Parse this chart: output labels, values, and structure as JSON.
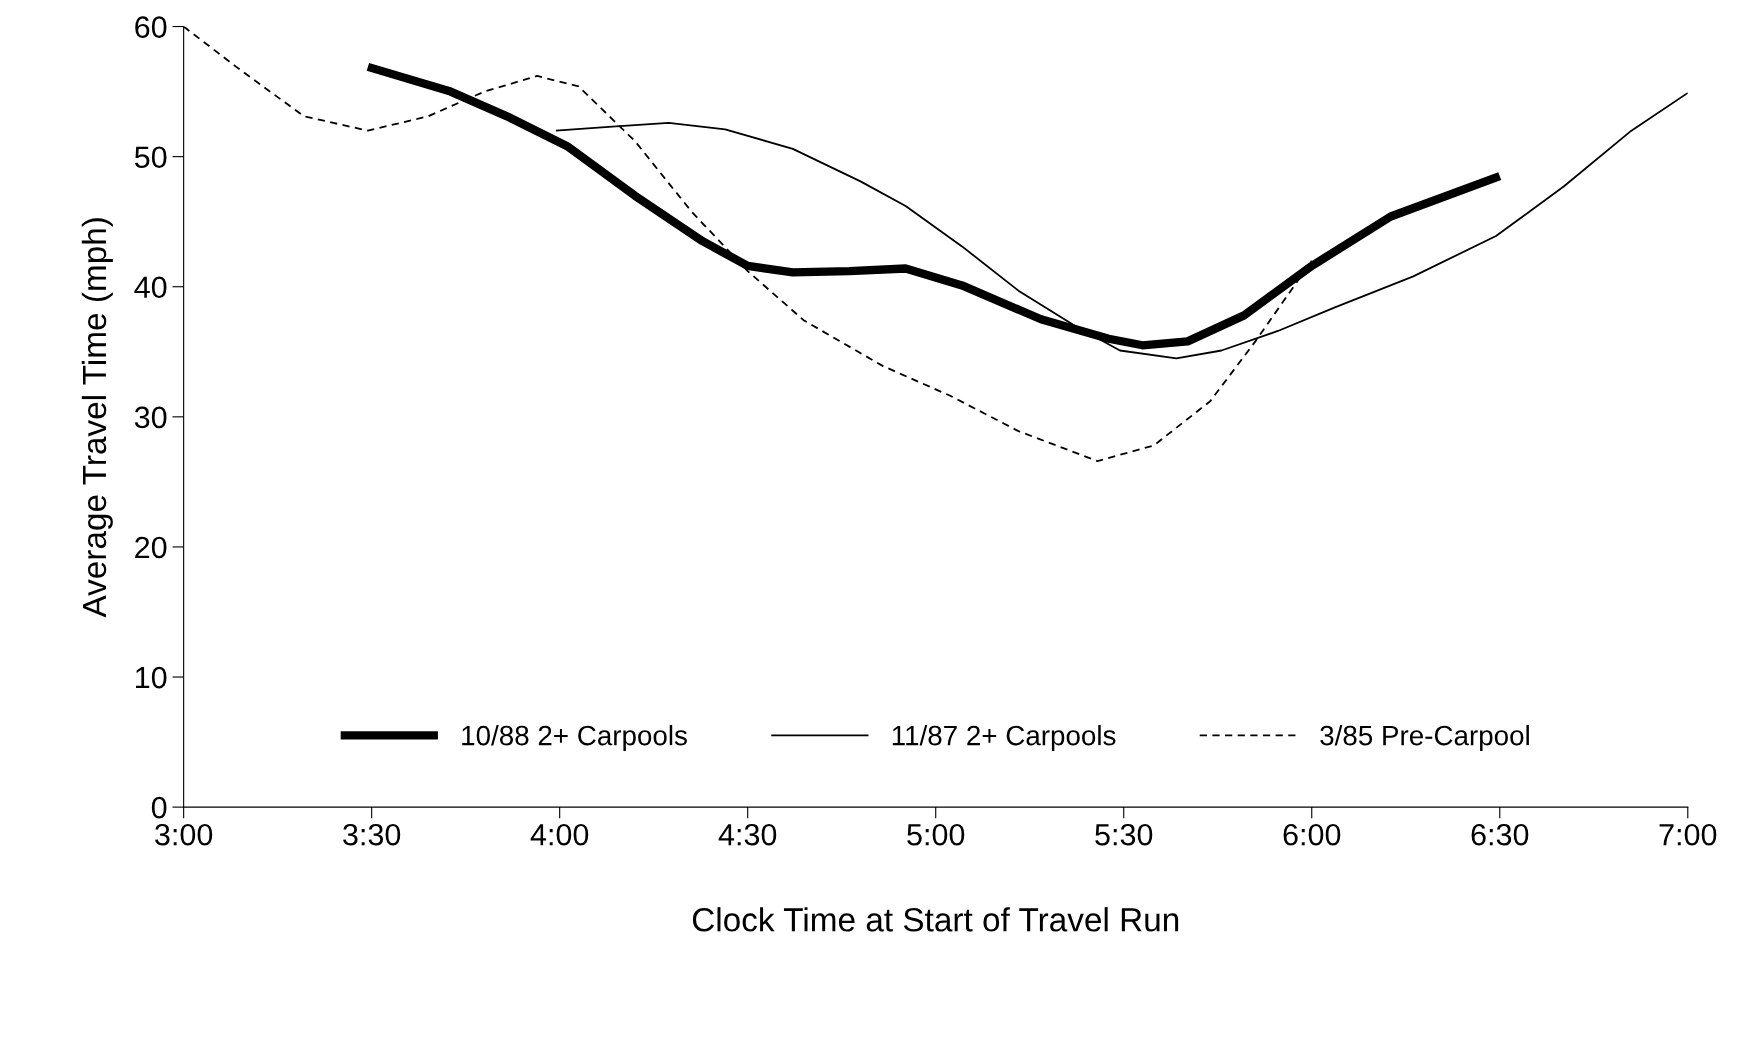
{
  "chart_data": {
    "type": "line",
    "xlabel": "Clock Time at Start of Travel Run",
    "ylabel": "Average Travel Time (mph)",
    "xlim": [
      3,
      7
    ],
    "xticks": [
      {
        "value": 3,
        "label": "3:00"
      },
      {
        "value": 3.5,
        "label": "3:30"
      },
      {
        "value": 4,
        "label": "4:00"
      },
      {
        "value": 4.5,
        "label": "4:30"
      },
      {
        "value": 5,
        "label": "5:00"
      },
      {
        "value": 5.5,
        "label": "5:30"
      },
      {
        "value": 6,
        "label": "6:00"
      },
      {
        "value": 6.5,
        "label": "6:30"
      },
      {
        "value": 7,
        "label": "7:00"
      }
    ],
    "ylim": [
      0,
      60
    ],
    "yticks": [
      0,
      10,
      20,
      30,
      40,
      50,
      60
    ],
    "grid": false,
    "legend": "bottom",
    "marker": "none",
    "series": [
      {
        "name": "10/88 2+ Carpools",
        "color": "#000000",
        "line_style": "solid",
        "x": [
          3.49,
          3.71,
          3.86,
          4.02,
          4.2,
          4.38,
          4.5,
          4.62,
          4.77,
          4.92,
          5.07,
          5.28,
          5.46,
          5.55,
          5.67,
          5.82,
          6.0,
          6.21,
          6.5
        ],
        "values": [
          56.9,
          55.0,
          53.1,
          50.8,
          47.0,
          43.5,
          41.6,
          41.1,
          41.2,
          41.4,
          40.1,
          37.5,
          36.0,
          35.5,
          35.8,
          37.8,
          41.6,
          45.4,
          48.5
        ]
      },
      {
        "name": "11/87 2+ Carpools",
        "color": "#000000",
        "line_style": "solid",
        "x": [
          3.99,
          4.14,
          4.29,
          4.44,
          4.62,
          4.8,
          4.92,
          5.07,
          5.22,
          5.37,
          5.49,
          5.64,
          5.76,
          5.91,
          6.06,
          6.27,
          6.49,
          6.67,
          6.85,
          7.0
        ],
        "values": [
          52.0,
          52.3,
          52.6,
          52.1,
          50.6,
          48.1,
          46.2,
          43.1,
          39.7,
          37.0,
          35.1,
          34.5,
          35.1,
          36.6,
          38.4,
          40.8,
          43.9,
          47.7,
          52.0,
          54.9
        ]
      },
      {
        "name": "3/85 Pre-Carpool",
        "color": "#000000",
        "line_style": "dashed",
        "x": [
          3.0,
          3.14,
          3.32,
          3.49,
          3.65,
          3.8,
          3.94,
          4.05,
          4.2,
          4.35,
          4.5,
          4.65,
          4.86,
          5.04,
          5.22,
          5.43,
          5.58,
          5.73,
          5.85,
          6.0
        ],
        "values": [
          60.0,
          56.9,
          53.1,
          52.0,
          53.1,
          55.0,
          56.2,
          55.4,
          51.2,
          45.8,
          41.2,
          37.4,
          33.9,
          31.6,
          28.9,
          26.6,
          27.8,
          31.2,
          35.8,
          42.0
        ]
      }
    ]
  }
}
